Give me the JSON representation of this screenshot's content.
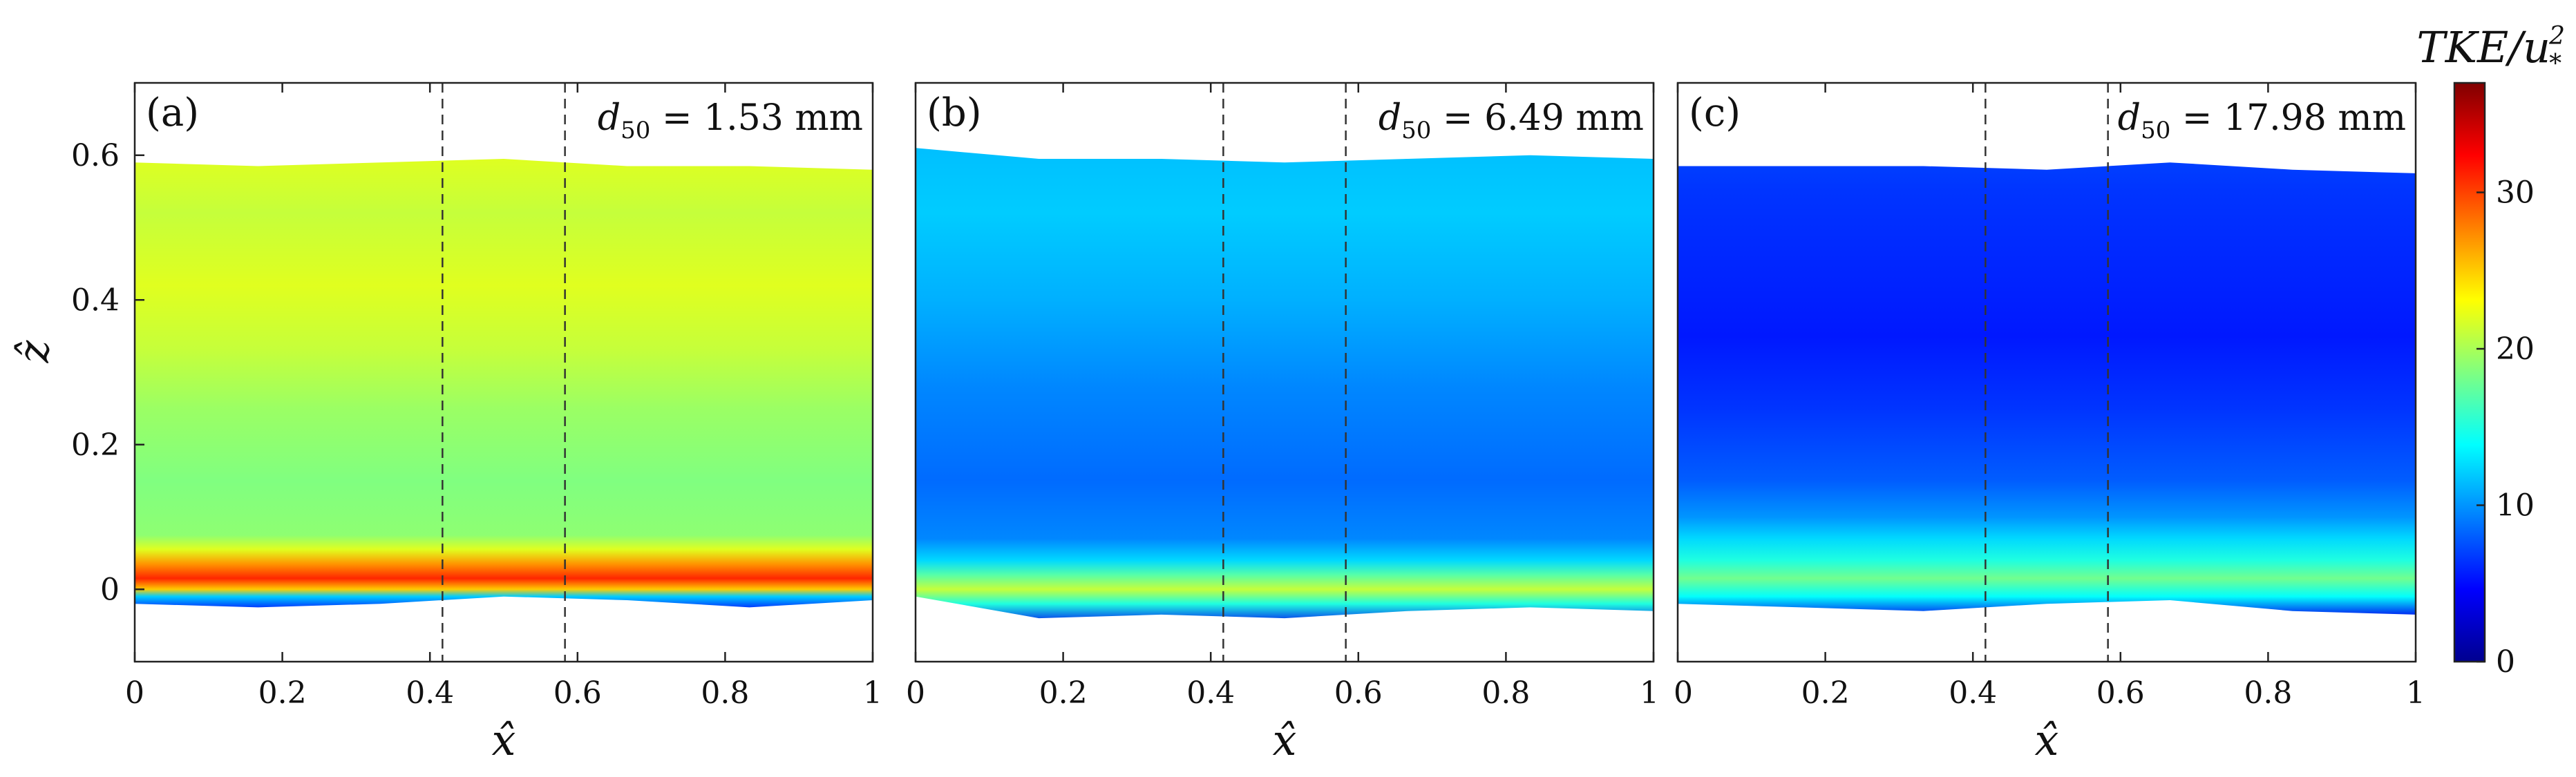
{
  "chart_data": [
    {
      "type": "heatmap",
      "panel_label": "(a)",
      "annotation": {
        "var": "d",
        "sub": "50",
        "text": " = 1.53 mm"
      },
      "xlabel": "x̂",
      "ylabel": "ẑ",
      "xlim": [
        0,
        1
      ],
      "ylim": [
        -0.1,
        0.7
      ],
      "xticks": [
        0,
        0.2,
        0.4,
        0.6,
        0.8,
        1
      ],
      "xtick_labels": [
        "0",
        "0.2",
        "0.4",
        "0.6",
        "0.8",
        "1"
      ],
      "yticks": [
        0,
        0.2,
        0.4,
        0.6
      ],
      "ytick_labels": [
        "0",
        "0.2",
        "0.4",
        "0.6"
      ],
      "dashed_lines_x": [
        0.417,
        0.583
      ],
      "x": [
        0,
        0.167,
        0.333,
        0.5,
        0.667,
        0.833,
        1
      ],
      "z_top": [
        0.59,
        0.585,
        0.59,
        0.595,
        0.585,
        0.585,
        0.58
      ],
      "z_bottom": [
        -0.02,
        -0.025,
        -0.02,
        -0.01,
        -0.015,
        -0.025,
        -0.015
      ],
      "profile": [
        {
          "z": -0.03,
          "tke": 5
        },
        {
          "z": -0.01,
          "tke": 12
        },
        {
          "z": 0.0,
          "tke": 25
        },
        {
          "z": 0.015,
          "tke": 31
        },
        {
          "z": 0.035,
          "tke": 27
        },
        {
          "z": 0.055,
          "tke": 22
        },
        {
          "z": 0.075,
          "tke": 19
        },
        {
          "z": 0.15,
          "tke": 18.5
        },
        {
          "z": 0.25,
          "tke": 19.5
        },
        {
          "z": 0.33,
          "tke": 21
        },
        {
          "z": 0.42,
          "tke": 22
        },
        {
          "z": 0.52,
          "tke": 21
        },
        {
          "z": 0.6,
          "tke": 22
        }
      ]
    },
    {
      "type": "heatmap",
      "panel_label": "(b)",
      "annotation": {
        "var": "d",
        "sub": "50",
        "text": " = 6.49 mm"
      },
      "xlabel": "x̂",
      "ylabel": "",
      "xlim": [
        0,
        1
      ],
      "ylim": [
        -0.1,
        0.7
      ],
      "xticks": [
        0,
        0.2,
        0.4,
        0.6,
        0.8,
        1
      ],
      "xtick_labels": [
        "0",
        "0.2",
        "0.4",
        "0.6",
        "0.8",
        "1"
      ],
      "yticks": [],
      "ytick_labels": [],
      "dashed_lines_x": [
        0.417,
        0.583
      ],
      "x": [
        0,
        0.167,
        0.333,
        0.5,
        0.667,
        0.833,
        1
      ],
      "z_top": [
        0.61,
        0.595,
        0.595,
        0.59,
        0.595,
        0.6,
        0.595
      ],
      "z_bottom": [
        -0.01,
        -0.04,
        -0.035,
        -0.04,
        -0.03,
        -0.025,
        -0.03
      ],
      "profile": [
        {
          "z": -0.05,
          "tke": 4
        },
        {
          "z": -0.02,
          "tke": 15
        },
        {
          "z": 0.0,
          "tke": 21
        },
        {
          "z": 0.02,
          "tke": 17
        },
        {
          "z": 0.04,
          "tke": 12.5
        },
        {
          "z": 0.07,
          "tke": 9.5
        },
        {
          "z": 0.15,
          "tke": 8.5
        },
        {
          "z": 0.28,
          "tke": 9.5
        },
        {
          "z": 0.4,
          "tke": 11
        },
        {
          "z": 0.52,
          "tke": 12
        },
        {
          "z": 0.62,
          "tke": 11.5
        }
      ]
    },
    {
      "type": "heatmap",
      "panel_label": "(c)",
      "annotation": {
        "var": "d",
        "sub": "50",
        "text": " = 17.98 mm"
      },
      "xlabel": "x̂",
      "ylabel": "",
      "xlim": [
        0,
        1
      ],
      "ylim": [
        -0.1,
        0.7
      ],
      "xticks": [
        0,
        0.2,
        0.4,
        0.6,
        0.8,
        1
      ],
      "xtick_labels": [
        "0",
        "0.2",
        "0.4",
        "0.6",
        "0.8",
        "1"
      ],
      "yticks": [],
      "ytick_labels": [],
      "dashed_lines_x": [
        0.417,
        0.583
      ],
      "x": [
        0,
        0.167,
        0.333,
        0.5,
        0.667,
        0.833,
        1
      ],
      "z_top": [
        0.585,
        0.585,
        0.585,
        0.58,
        0.59,
        0.58,
        0.575
      ],
      "z_bottom": [
        -0.02,
        -0.025,
        -0.03,
        -0.02,
        -0.015,
        -0.03,
        -0.035
      ],
      "profile": [
        {
          "z": -0.04,
          "tke": 4
        },
        {
          "z": -0.01,
          "tke": 14
        },
        {
          "z": 0.015,
          "tke": 18
        },
        {
          "z": 0.04,
          "tke": 15
        },
        {
          "z": 0.07,
          "tke": 12.5
        },
        {
          "z": 0.1,
          "tke": 10
        },
        {
          "z": 0.15,
          "tke": 8
        },
        {
          "z": 0.25,
          "tke": 6.5
        },
        {
          "z": 0.35,
          "tke": 5.5
        },
        {
          "z": 0.45,
          "tke": 6
        },
        {
          "z": 0.55,
          "tke": 6.5
        },
        {
          "z": 0.6,
          "tke": 7
        }
      ]
    }
  ],
  "colorbar": {
    "title_var": "TKE/u",
    "title_sub": "*",
    "title_sup": "2",
    "min": 0,
    "max": 37,
    "ticks": [
      0,
      10,
      20,
      30
    ],
    "tick_labels": [
      "0",
      "10",
      "20",
      "30"
    ],
    "colormap": "jet",
    "jet_stops": [
      "#00008f",
      "#0000ff",
      "#0080ff",
      "#00ffff",
      "#80ff80",
      "#ffff00",
      "#ff8000",
      "#ff0000",
      "#800000"
    ]
  }
}
